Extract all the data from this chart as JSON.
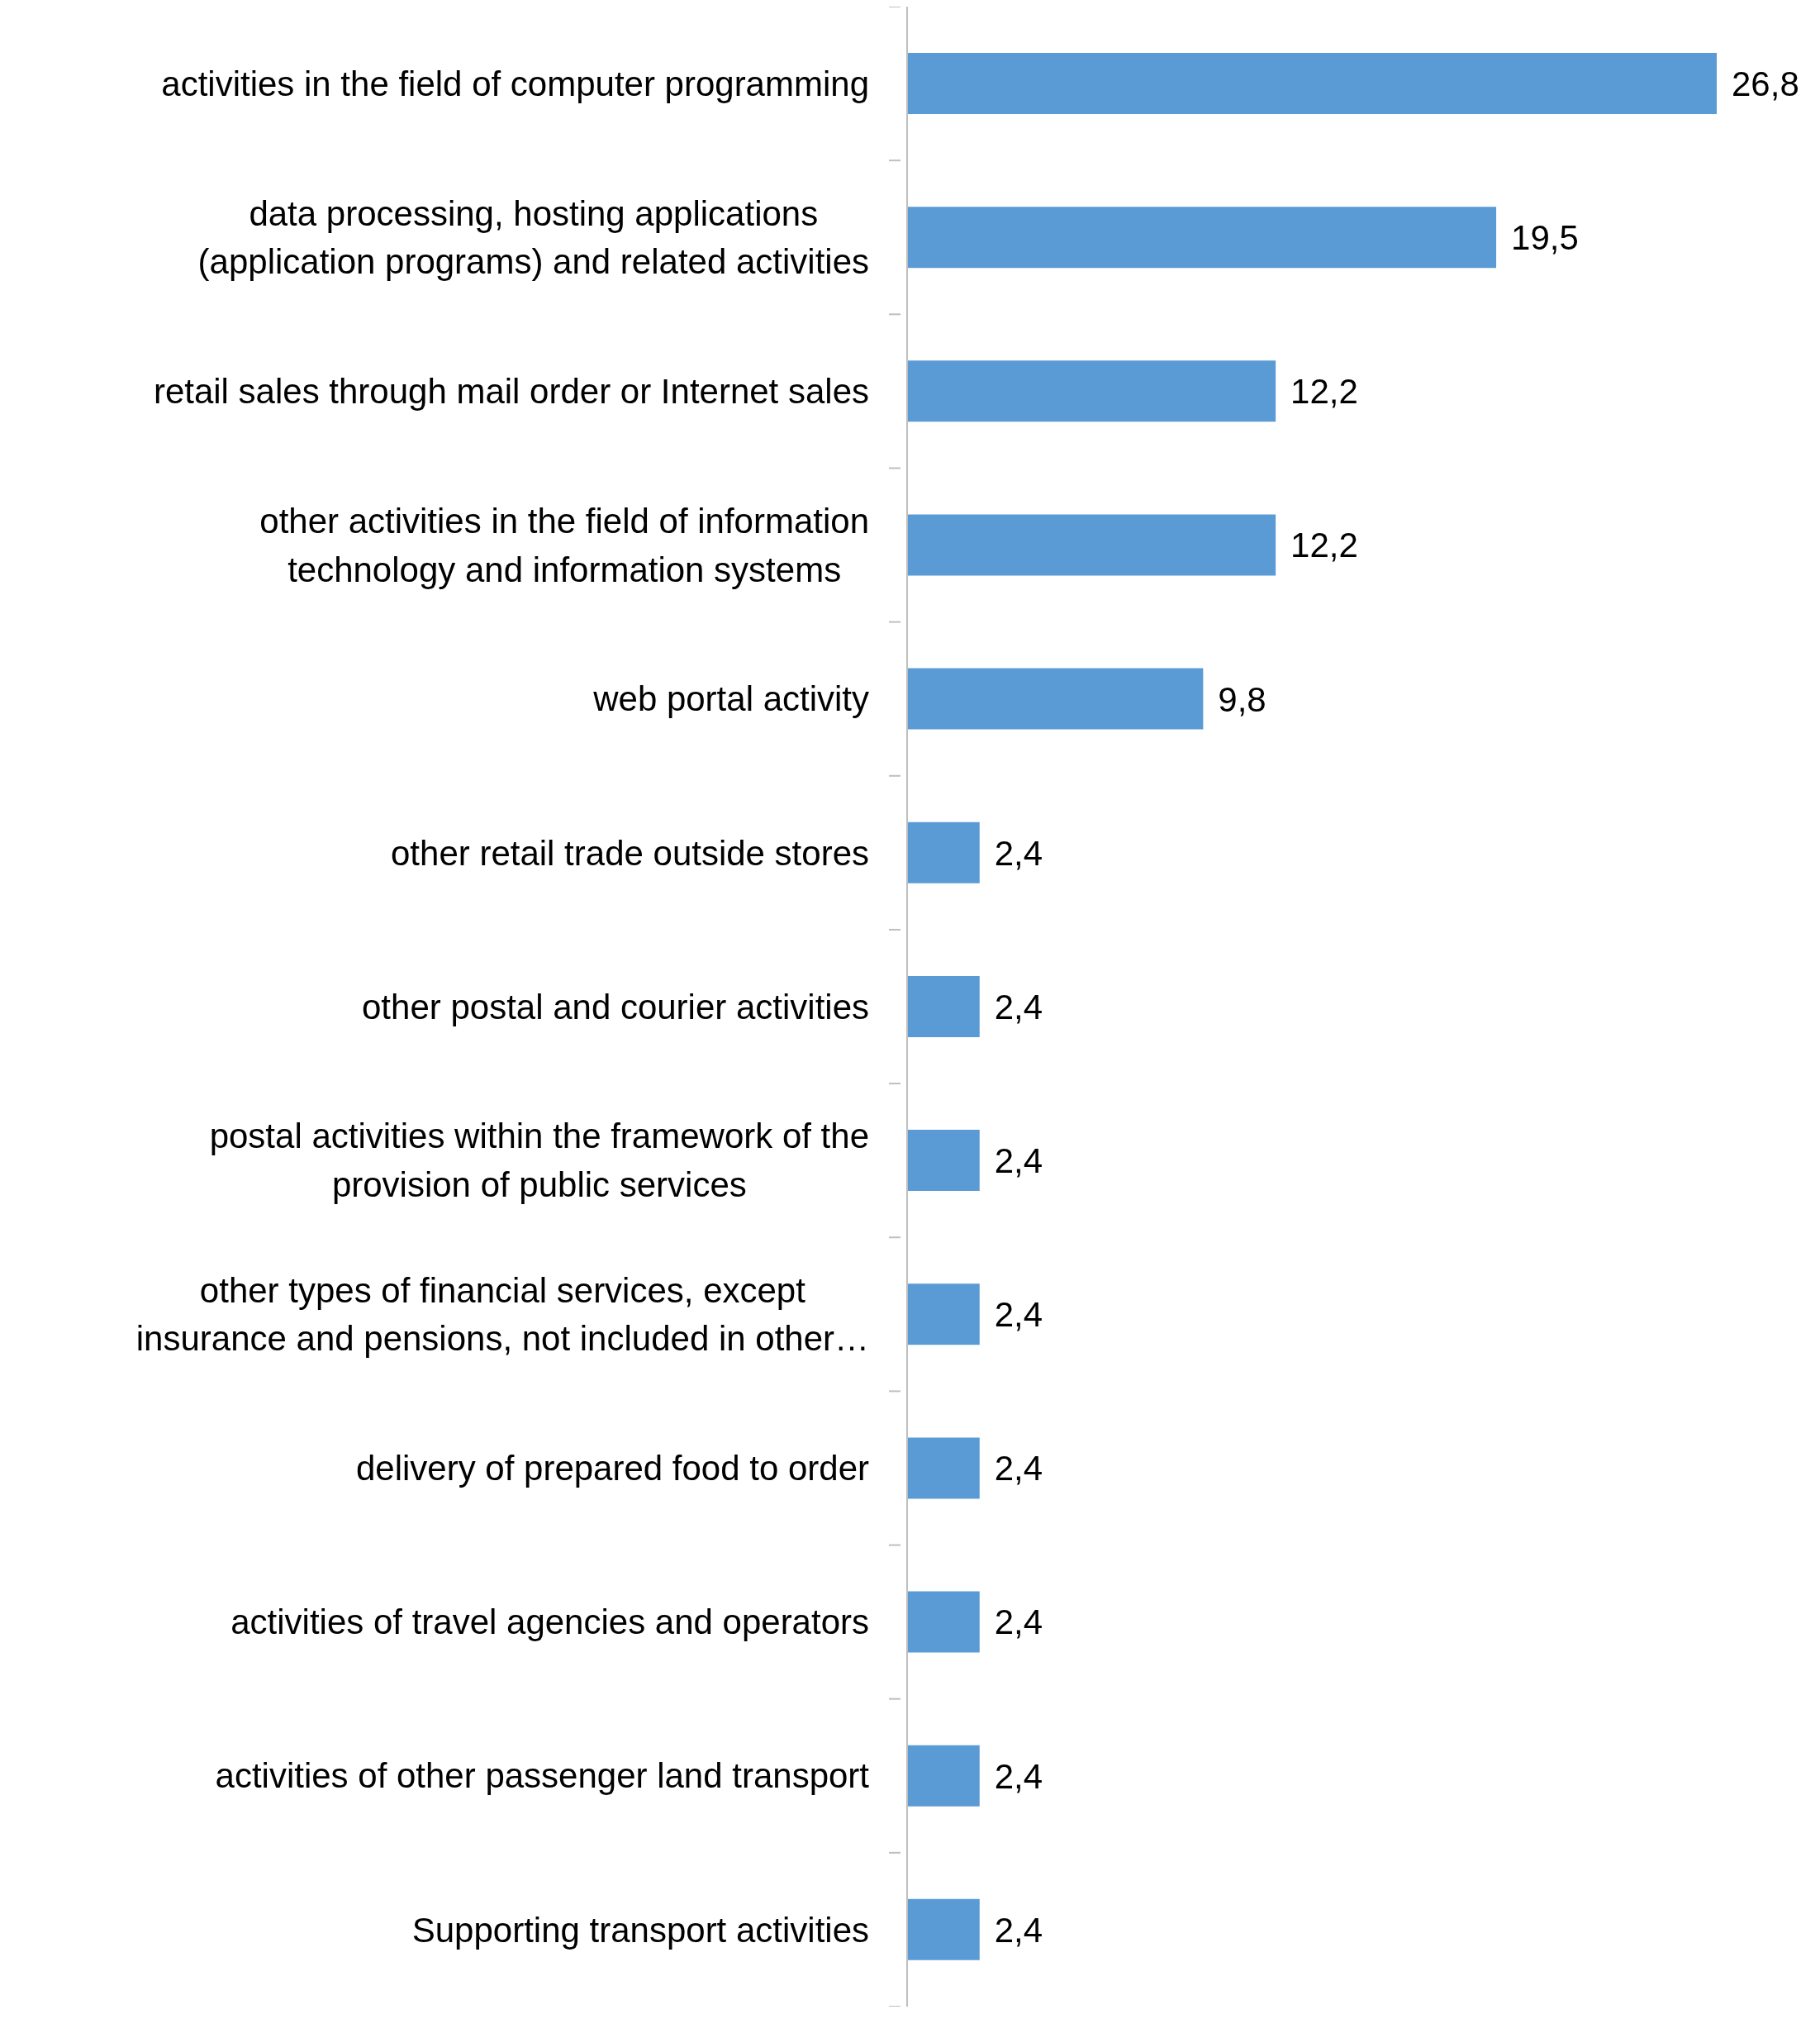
{
  "chart_data": {
    "type": "bar",
    "orientation": "horizontal",
    "categories": [
      "activities in the field of computer programming",
      "data processing, hosting applications (application programs) and related activities",
      "retail sales through mail order or Internet sales",
      "other activities in the field of information technology and information systems",
      "web portal activity",
      "other retail trade outside stores",
      "other postal and courier activities",
      "postal activities within the framework of the provision of public services",
      "other types of financial services, except insurance and pensions, not included in other…",
      "delivery of prepared food to order",
      "activities of travel agencies and operators",
      "activities of other passenger land transport",
      "Supporting transport activities"
    ],
    "values": [
      26.8,
      19.5,
      12.2,
      12.2,
      9.8,
      2.4,
      2.4,
      2.4,
      2.4,
      2.4,
      2.4,
      2.4,
      2.4
    ],
    "value_labels": [
      "26,8",
      "19,5",
      "12,2",
      "12,2",
      "9,8",
      "2,4",
      "2,4",
      "2,4",
      "2,4",
      "2,4",
      "2,4",
      "2,4",
      "2,4"
    ],
    "color": "#5b9bd5"
  }
}
